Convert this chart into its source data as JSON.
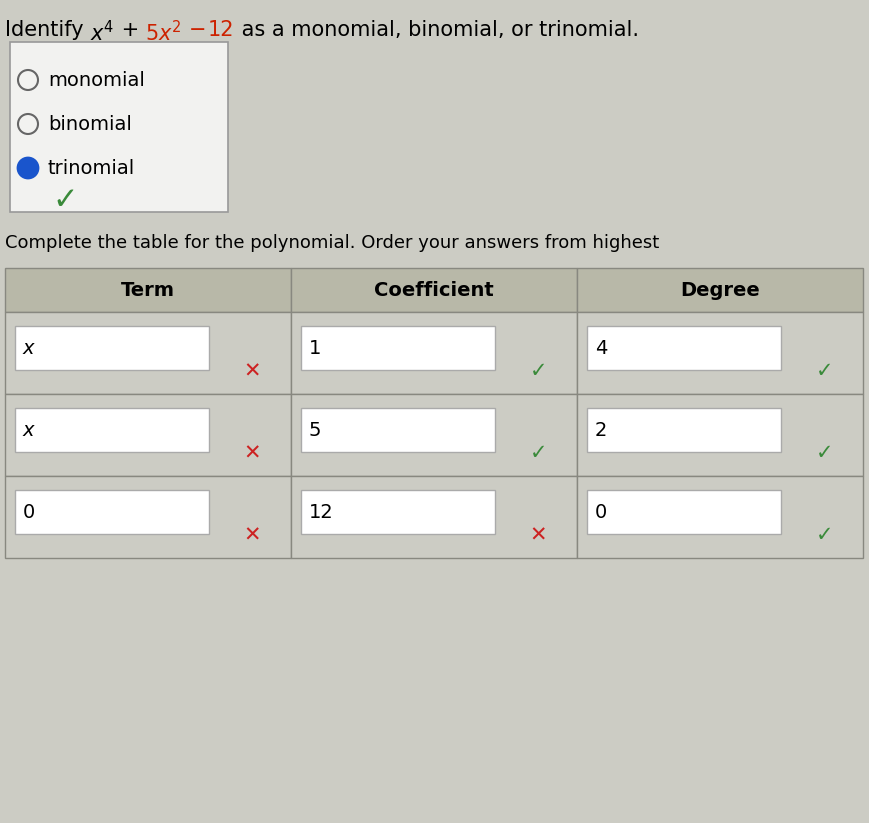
{
  "bg_color": "#ccccc4",
  "title_segments": [
    {
      "text": "Identify ",
      "color": "#000000"
    },
    {
      "text": "x⁴",
      "color": "#000000",
      "super": false
    },
    {
      "text": " + ",
      "color": "#000000"
    },
    {
      "text": "5x²",
      "color": "#cc2200"
    },
    {
      "text": " − ",
      "color": "#cc2200"
    },
    {
      "text": "12",
      "color": "#cc2200"
    },
    {
      "text": " as a monomial, binomial, or trinomial.",
      "color": "#000000"
    }
  ],
  "options": [
    {
      "label": "monomial",
      "selected": false
    },
    {
      "label": "binomial",
      "selected": false
    },
    {
      "label": "trinomial",
      "selected": true
    }
  ],
  "radio_selected_color": "#1a55cc",
  "radio_unselected_border": "#666666",
  "option_box_bg": "#f2f2f0",
  "option_box_border": "#999999",
  "green_check_color": "#3a8a3a",
  "red_x_color": "#cc2222",
  "subtitle": "Complete the table for the polynomial. Order your answers from highest",
  "table_header_bg": "#b8b8a8",
  "table_header_text": [
    "Term",
    "Coefficient",
    "Degree"
  ],
  "table_rows": [
    {
      "term": "x",
      "coeff": "1",
      "degree": "4",
      "term_mark": "red_x",
      "coeff_mark": "green_check",
      "degree_mark": "green_check"
    },
    {
      "term": "x",
      "coeff": "5",
      "degree": "2",
      "term_mark": "red_x",
      "coeff_mark": "green_check",
      "degree_mark": "green_check"
    },
    {
      "term": "0",
      "coeff": "12",
      "degree": "0",
      "term_mark": "red_x",
      "coeff_mark": "red_x",
      "degree_mark": "green_check"
    }
  ],
  "table_border_color": "#888880",
  "cell_bg": "#ccccc4",
  "inner_box_bg": "#ffffff",
  "inner_box_border": "#aaaaaa",
  "font_size_title": 15,
  "font_size_options": 14,
  "font_size_table_hdr": 14,
  "font_size_table_cell": 14,
  "font_size_mark": 15
}
